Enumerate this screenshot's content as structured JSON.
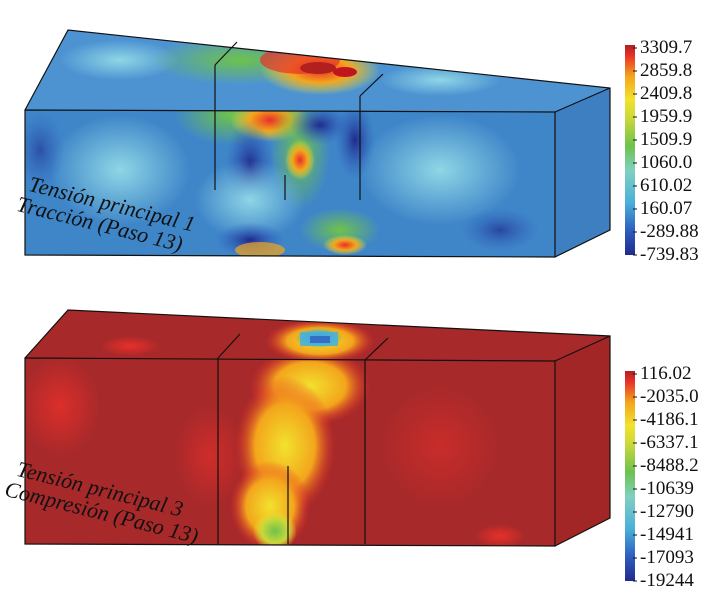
{
  "panels": [
    {
      "caption_line1": "Tensión principal 1",
      "caption_line2": "Tracción (Paso 13)",
      "colorbar_labels": [
        "3309.7",
        "2859.8",
        "2409.8",
        "1959.9",
        "1509.9",
        "1060.0",
        "610.02",
        "160.07",
        "-289.88",
        "-739.83"
      ]
    },
    {
      "caption_line1": "Tensión principal 3",
      "caption_line2": "Compresión (Paso 13)",
      "colorbar_labels": [
        "116.02",
        "-2035.0",
        "-4186.1",
        "-6337.1",
        "-8488.2",
        "-10639",
        "-12790",
        "-14941",
        "-17093",
        "-19244"
      ]
    }
  ],
  "colors": {
    "max": "#b21f1f",
    "high": "#e8302a",
    "mid_high": "#f3a51c",
    "mid": "#f2e22d",
    "mid_low": "#6ec24c",
    "low": "#4ab0d9",
    "base_blue": "#3f86c9",
    "min": "#1f2a8c",
    "beam_dark_red": "#a8292a"
  }
}
